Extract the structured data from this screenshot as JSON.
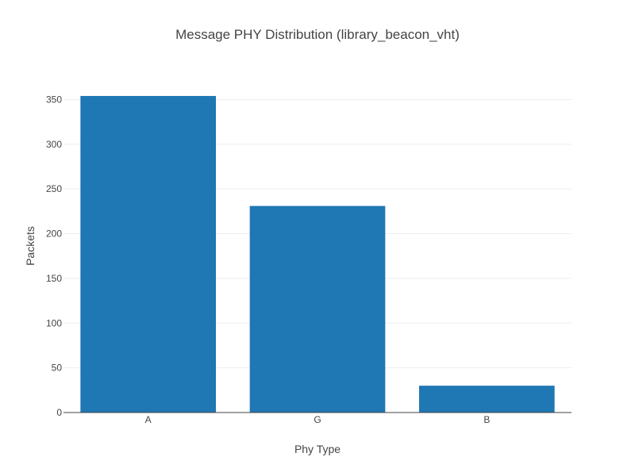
{
  "chart_data": {
    "type": "bar",
    "title": "Message PHY Distribution (library_beacon_vht)",
    "xlabel": "Phy Type",
    "ylabel": "Packets",
    "categories": [
      "A",
      "G",
      "B"
    ],
    "values": [
      354,
      231,
      30
    ],
    "ylim": [
      0,
      372.6
    ],
    "yticks": [
      0,
      50,
      100,
      150,
      200,
      250,
      300,
      350
    ],
    "grid": true,
    "legend": "none",
    "bar_color": "#1f77b4",
    "grid_color": "#eeeeee",
    "axis_line_color": "#444444"
  }
}
